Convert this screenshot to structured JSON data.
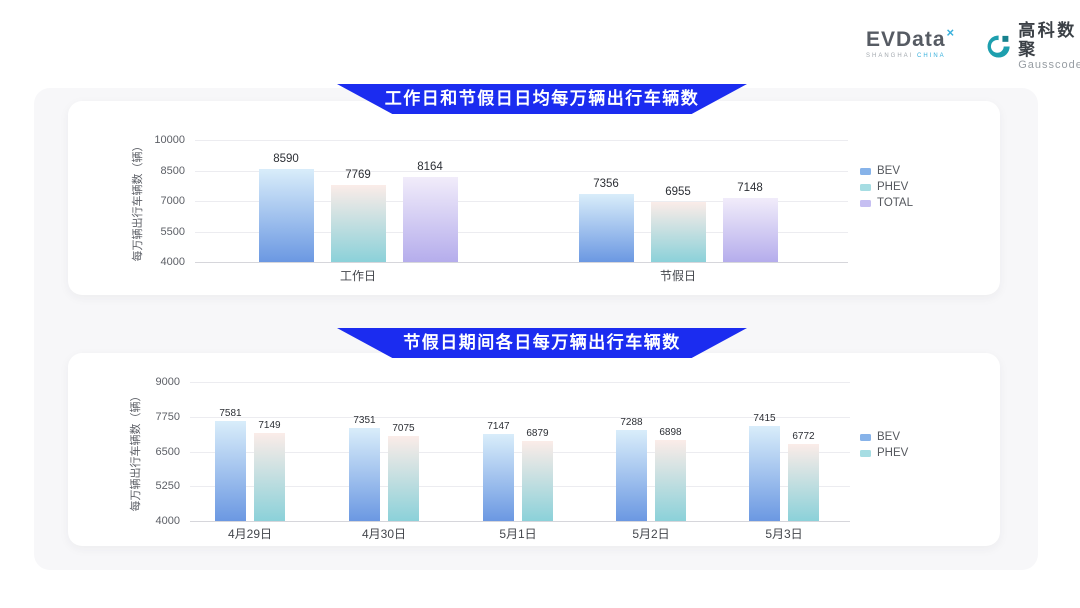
{
  "header": {
    "evdata": {
      "text": "EVData",
      "sup": "×",
      "sub_left": "SHANGHAI",
      "sub_right": "CHINA"
    },
    "gausscode": {
      "cn": "高科数聚",
      "en": "Gausscode"
    }
  },
  "colors": {
    "banner_blue": "#1b2cf0",
    "logo_teal": "#38b0dc",
    "gausscode_icon": "#1d9fae",
    "gausscode_icon_dark": "#16818d",
    "series": {
      "bev": {
        "top": "#d9edfa",
        "bottom": "#6b98e2",
        "legend": "#87b3e9"
      },
      "phev": {
        "top": "#fbece8",
        "bottom": "#8bd1d9",
        "legend": "#a6dde3"
      },
      "total": {
        "top": "#f1ecfa",
        "bottom": "#b5adec",
        "legend": "#c6bff2"
      }
    }
  },
  "chart_data": [
    {
      "type": "bar",
      "title": "工作日和节假日日均每万辆出行车辆数",
      "categories": [
        "工作日",
        "节假日"
      ],
      "series": [
        {
          "name": "BEV",
          "color_key": "bev",
          "values": [
            8590,
            7356
          ]
        },
        {
          "name": "PHEV",
          "color_key": "phev",
          "values": [
            7769,
            6955
          ]
        },
        {
          "name": "TOTAL",
          "color_key": "total",
          "values": [
            8164,
            7148
          ]
        }
      ],
      "xlabel": "",
      "ylabel": "每万辆出行车辆数（辆）",
      "ylim": [
        4000,
        10000
      ],
      "yticks": [
        4000,
        5500,
        7000,
        8500,
        10000
      ],
      "grid": true,
      "legend_position": "right"
    },
    {
      "type": "bar",
      "title": "节假日期间各日每万辆出行车辆数",
      "categories": [
        "4月29日",
        "4月30日",
        "5月1日",
        "5月2日",
        "5月3日"
      ],
      "series": [
        {
          "name": "BEV",
          "color_key": "bev",
          "values": [
            7581,
            7351,
            7147,
            7288,
            7415
          ]
        },
        {
          "name": "PHEV",
          "color_key": "phev",
          "values": [
            7149,
            7075,
            6879,
            6898,
            6772
          ]
        }
      ],
      "xlabel": "",
      "ylabel": "每万辆出行车辆数（辆）",
      "ylim": [
        4000,
        9000
      ],
      "yticks": [
        4000,
        5250,
        6500,
        7750,
        9000
      ],
      "grid": true,
      "legend_position": "right"
    }
  ]
}
